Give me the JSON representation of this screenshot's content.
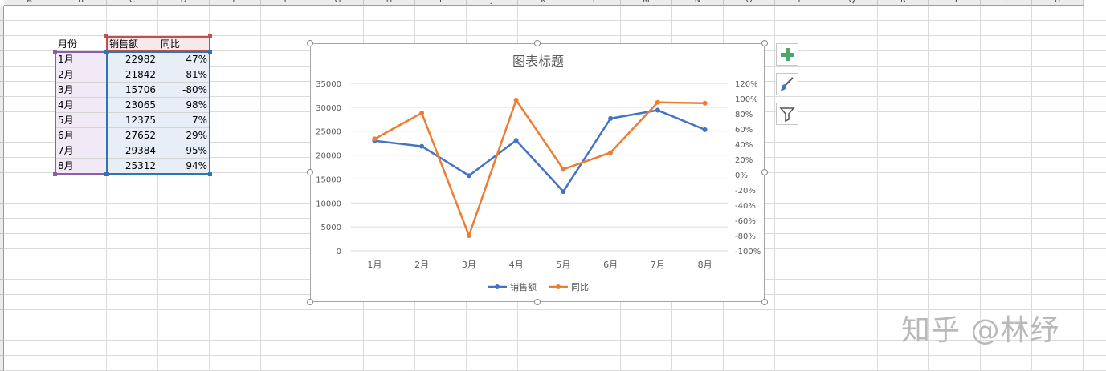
{
  "columns": [
    "A",
    "B",
    "C",
    "D",
    "E",
    "F",
    "G",
    "H",
    "I",
    "J",
    "K",
    "L",
    "M",
    "N",
    "O",
    "P",
    "Q",
    "R",
    "S",
    "T",
    "U"
  ],
  "table": {
    "headers": [
      "月份",
      "销售额",
      "同比"
    ],
    "rows": [
      [
        "1月",
        "22982",
        "47%"
      ],
      [
        "2月",
        "21842",
        "81%"
      ],
      [
        "3月",
        "15706",
        "-80%"
      ],
      [
        "4月",
        "23065",
        "98%"
      ],
      [
        "5月",
        "12375",
        "7%"
      ],
      [
        "6月",
        "27652",
        "29%"
      ],
      [
        "7月",
        "29384",
        "95%"
      ],
      [
        "8月",
        "25312",
        "94%"
      ]
    ]
  },
  "chart_data": {
    "type": "line",
    "title": "图表标题",
    "categories": [
      "1月",
      "2月",
      "3月",
      "4月",
      "5月",
      "6月",
      "7月",
      "8月"
    ],
    "series": [
      {
        "name": "销售额",
        "axis": "left",
        "color": "#4472c4",
        "values": [
          22982,
          21842,
          15706,
          23065,
          12375,
          27652,
          29384,
          25312
        ]
      },
      {
        "name": "同比",
        "axis": "right",
        "color": "#ed7d31",
        "values": [
          47,
          81,
          -80,
          98,
          7,
          29,
          95,
          94
        ]
      }
    ],
    "y_left": {
      "min": 0,
      "max": 35000,
      "step": 5000,
      "tick_labels": [
        "0",
        "5000",
        "10000",
        "15000",
        "20000",
        "25000",
        "30000",
        "35000"
      ]
    },
    "y_right": {
      "min": -100,
      "max": 120,
      "step": 20,
      "tick_labels": [
        "-100%",
        "-80%",
        "-60%",
        "-40%",
        "-20%",
        "0%",
        "20%",
        "40%",
        "60%",
        "80%",
        "100%",
        "120%"
      ]
    },
    "grid": true,
    "legend": "bottom"
  },
  "chart_buttons": [
    {
      "icon": "plus-icon",
      "color": "#4ea668"
    },
    {
      "icon": "brush-icon",
      "color": "#4472c4"
    },
    {
      "icon": "filter-icon",
      "color": "#555555"
    }
  ],
  "watermark": "知乎 @林纾"
}
